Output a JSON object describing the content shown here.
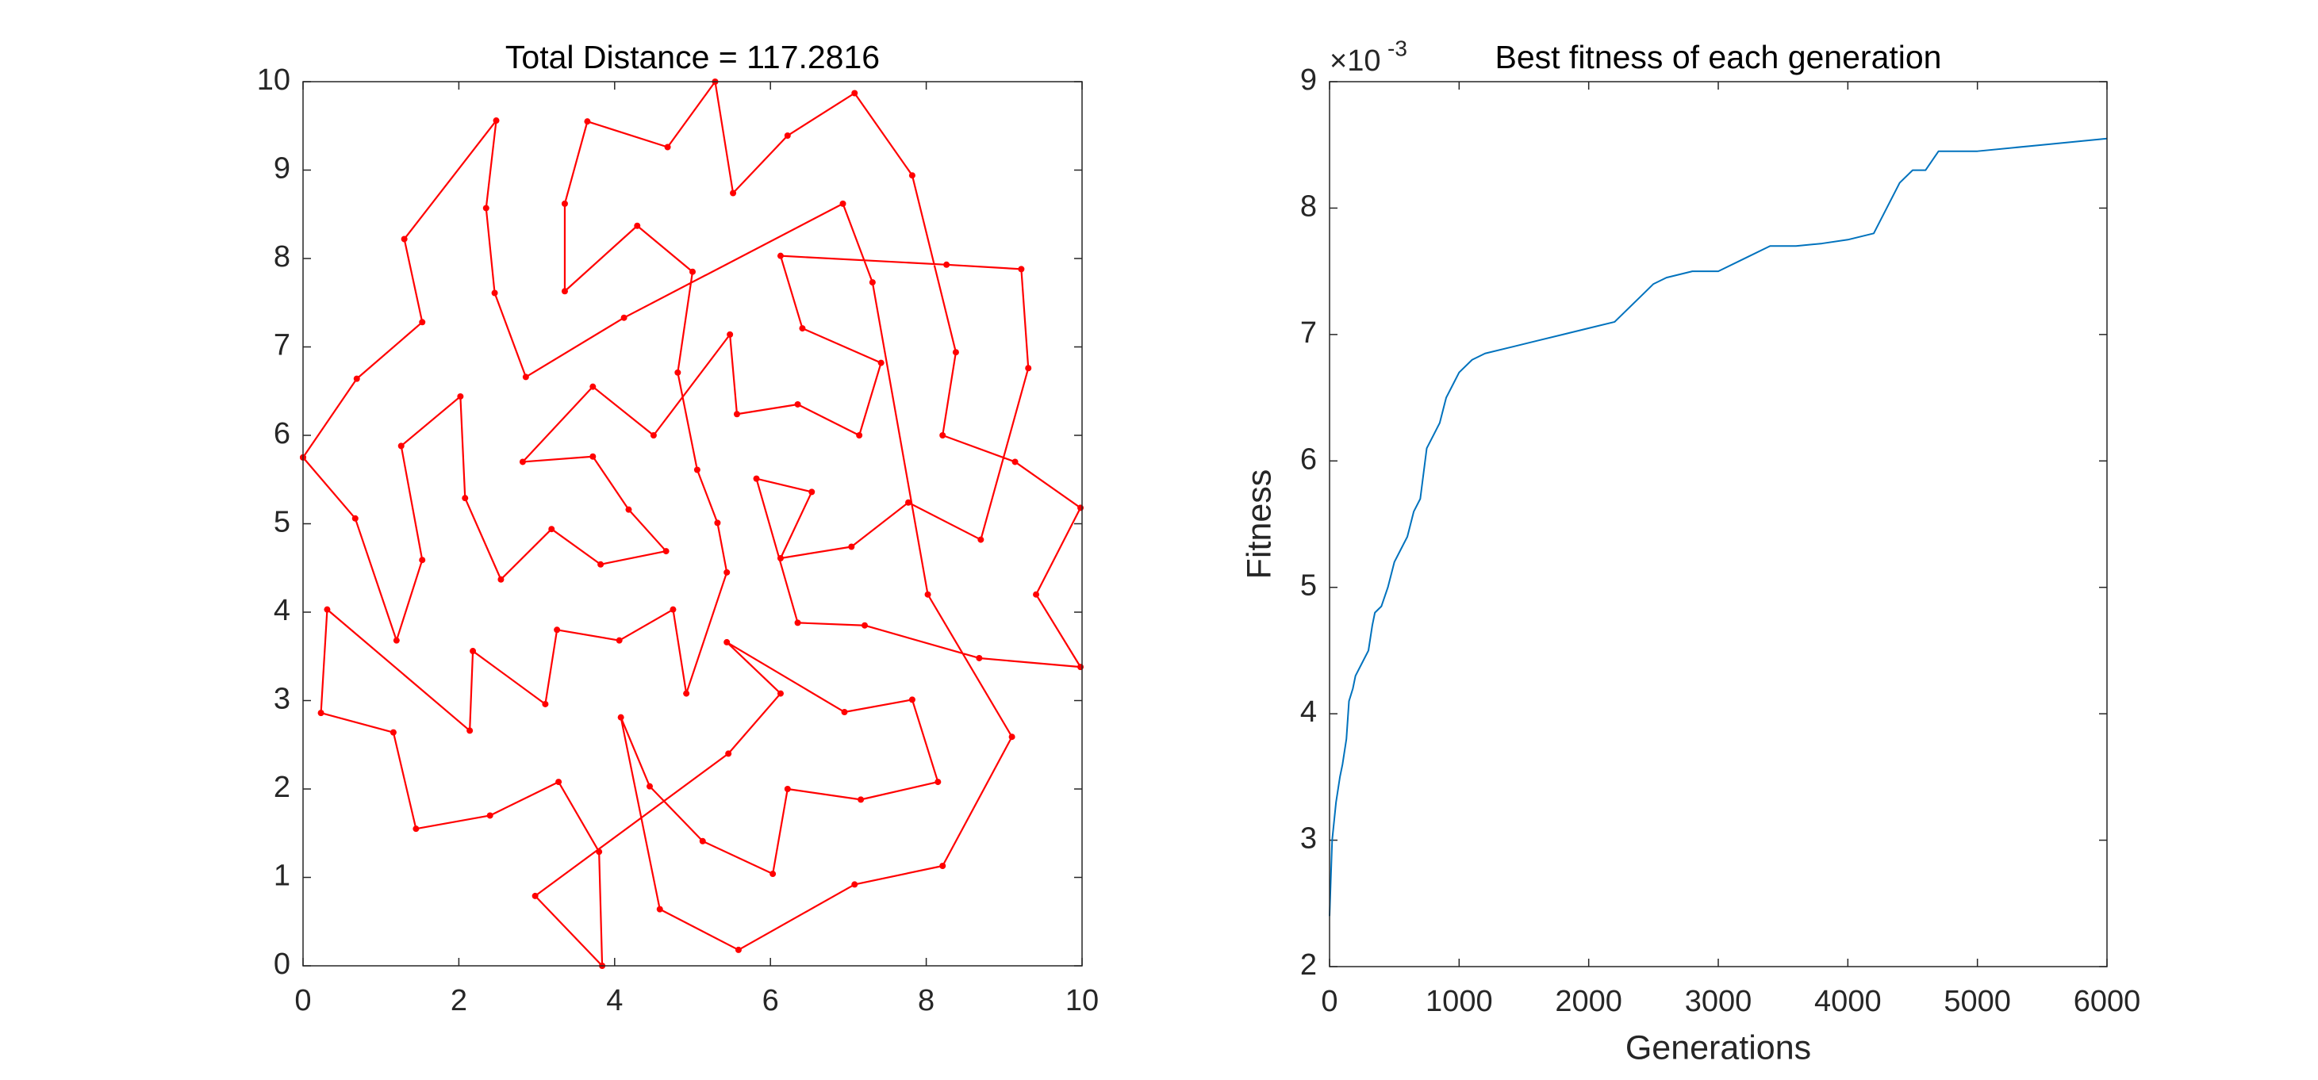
{
  "chart_data": [
    {
      "type": "line",
      "title": "Total Distance = 117.2816",
      "color": "#ff0000",
      "marker": true,
      "x": [
        0,
        0.69,
        1.53,
        1.3,
        2.48,
        2.35,
        2.46,
        2.86,
        4.12,
        6.93,
        7.31,
        8.02,
        9.1,
        8.21,
        7.08,
        5.59,
        4.58,
        4.08,
        4.45,
        5.13,
        6.03,
        6.22,
        7.16,
        8.15,
        7.82,
        6.95,
        5.44,
        6.13,
        5.46,
        2.98,
        3.84,
        3.8,
        3.28,
        2.4,
        1.45,
        1.16,
        0.23,
        0.31,
        2.14,
        2.18,
        3.11,
        3.26,
        4.06,
        4.75,
        4.92,
        5.44,
        5.32,
        5.06,
        4.81,
        5.0,
        4.29,
        3.36,
        3.36,
        3.65,
        4.68,
        5.29,
        5.52,
        6.22,
        7.08,
        7.82,
        8.38,
        8.21,
        9.14,
        9.98,
        9.41,
        9.98,
        8.68,
        7.21,
        6.35,
        5.82,
        6.53,
        6.13,
        7.04,
        7.77,
        8.7,
        9.31,
        9.22,
        8.26,
        6.13,
        6.41,
        7.42,
        7.14,
        6.35,
        5.57,
        5.48,
        4.5,
        3.72,
        2.82,
        3.72,
        4.18,
        4.66,
        3.82,
        3.19,
        2.54,
        2.08,
        2.02,
        1.26,
        1.53,
        1.2,
        0.67,
        0
      ],
      "values": [
        5.75,
        6.64,
        7.28,
        8.22,
        9.56,
        8.57,
        7.61,
        6.66,
        7.33,
        8.62,
        7.73,
        4.2,
        2.59,
        1.13,
        0.92,
        0.18,
        0.64,
        2.81,
        2.03,
        1.41,
        1.04,
        2.0,
        1.88,
        2.08,
        3.01,
        2.87,
        3.66,
        3.08,
        2.4,
        0.79,
        0,
        1.29,
        2.08,
        1.7,
        1.55,
        2.64,
        2.86,
        4.03,
        2.66,
        3.56,
        2.96,
        3.8,
        3.68,
        4.03,
        3.08,
        4.45,
        5.01,
        5.61,
        6.71,
        7.85,
        8.37,
        7.63,
        8.62,
        9.55,
        9.26,
        10.0,
        8.74,
        9.39,
        9.87,
        8.94,
        6.94,
        6.0,
        5.7,
        5.18,
        4.2,
        3.38,
        3.48,
        3.85,
        3.88,
        5.51,
        5.36,
        4.61,
        4.74,
        5.24,
        4.82,
        6.76,
        7.88,
        7.93,
        8.03,
        7.21,
        6.82,
        6.0,
        6.35,
        6.24,
        7.14,
        6.0,
        6.55,
        5.7,
        5.76,
        5.16,
        4.69,
        4.54,
        4.94,
        4.37,
        5.29,
        6.44,
        5.88,
        4.59,
        3.68,
        5.06,
        5.75
      ],
      "xlim": [
        0,
        10
      ],
      "xticks": [
        0,
        2,
        4,
        6,
        8,
        10
      ],
      "ylim": [
        0,
        10
      ],
      "yticks": [
        0,
        1,
        2,
        3,
        4,
        5,
        6,
        7,
        8,
        9,
        10
      ]
    },
    {
      "type": "line",
      "title": "Best fitness of each generation",
      "x_label": "Generations",
      "y_label": "Fitness",
      "y_multiplier": {
        "base": "×10",
        "exponent": "-3"
      },
      "color": "#0072bd",
      "marker": false,
      "x": [
        0,
        20,
        50,
        80,
        100,
        130,
        150,
        180,
        200,
        250,
        300,
        330,
        350,
        400,
        450,
        500,
        550,
        600,
        650,
        700,
        750,
        800,
        850,
        900,
        950,
        1000,
        1100,
        1200,
        1400,
        1600,
        1800,
        2000,
        2200,
        2400,
        2500,
        2600,
        2800,
        3000,
        3200,
        3400,
        3600,
        3800,
        4000,
        4200,
        4300,
        4400,
        4500,
        4600,
        4700,
        5000,
        5500,
        6000
      ],
      "values": [
        0.0024,
        0.003,
        0.0033,
        0.0035,
        0.0036,
        0.0038,
        0.0041,
        0.0042,
        0.0043,
        0.0044,
        0.0045,
        0.0047,
        0.0048,
        0.00485,
        0.005,
        0.0052,
        0.0053,
        0.0054,
        0.0056,
        0.0057,
        0.0061,
        0.0062,
        0.0063,
        0.0065,
        0.0066,
        0.0067,
        0.0068,
        0.00685,
        0.0069,
        0.00695,
        0.007,
        0.00705,
        0.0071,
        0.0073,
        0.0074,
        0.00745,
        0.0075,
        0.0075,
        0.0076,
        0.0077,
        0.0077,
        0.00772,
        0.00775,
        0.0078,
        0.008,
        0.0082,
        0.0083,
        0.0083,
        0.00845,
        0.00845,
        0.0085,
        0.00855
      ],
      "xlim": [
        0,
        6000
      ],
      "xticks": [
        0,
        1000,
        2000,
        3000,
        4000,
        5000,
        6000
      ],
      "ylim": [
        0.002,
        0.009
      ],
      "yticks": [
        {
          "value": 0.002,
          "label": "2"
        },
        {
          "value": 0.003,
          "label": "3"
        },
        {
          "value": 0.004,
          "label": "4"
        },
        {
          "value": 0.005,
          "label": "5"
        },
        {
          "value": 0.006,
          "label": "6"
        },
        {
          "value": 0.007,
          "label": "7"
        },
        {
          "value": 0.008,
          "label": "8"
        },
        {
          "value": 0.009,
          "label": "9"
        }
      ]
    }
  ]
}
